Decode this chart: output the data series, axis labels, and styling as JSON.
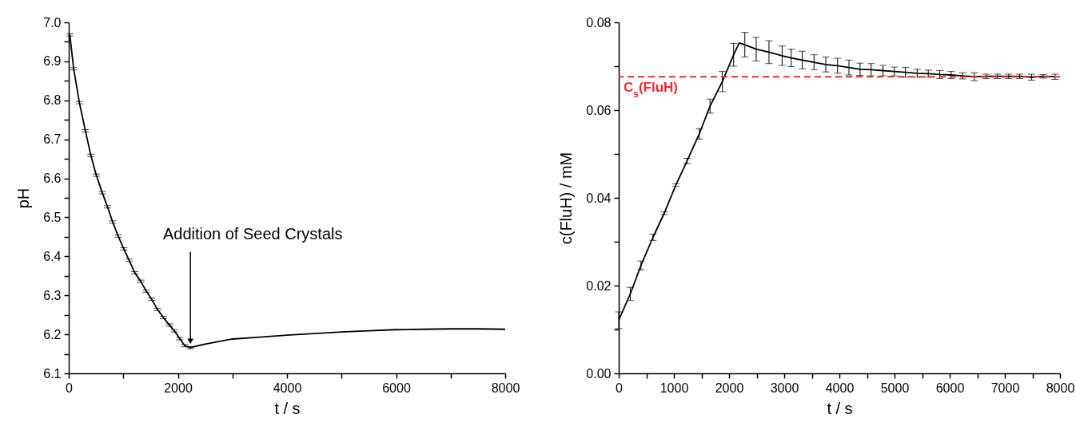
{
  "chart_data": [
    {
      "type": "line",
      "xlabel": "t / s",
      "ylabel": "pH",
      "x": [
        20,
        90,
        195,
        305,
        405,
        505,
        615,
        710,
        805,
        905,
        1010,
        1105,
        1210,
        1320,
        1420,
        1520,
        1625,
        1735,
        1845,
        1935,
        2035,
        2125,
        2230,
        2500,
        3000,
        3500,
        4000,
        4500,
        5000,
        5500,
        6000,
        6500,
        7000,
        7500,
        8000
      ],
      "series": [
        {
          "color": "#000000",
          "values": [
            6.968,
            6.881,
            6.794,
            6.722,
            6.659,
            6.608,
            6.563,
            6.527,
            6.488,
            6.452,
            6.419,
            6.39,
            6.358,
            6.336,
            6.311,
            6.29,
            6.264,
            6.243,
            6.224,
            6.209,
            6.189,
            6.171,
            6.166,
            6.175,
            6.188,
            6.193,
            6.198,
            6.202,
            6.206,
            6.209,
            6.212,
            6.213,
            6.214,
            6.214,
            6.213
          ],
          "errors": [
            0.003,
            0.003,
            0.003,
            0.003,
            0.003,
            0.003,
            0.003,
            0.003,
            0.003,
            0.003,
            0.003,
            0.003,
            0.003,
            0.003,
            0.003,
            0.003,
            0.003,
            0.003,
            0.003,
            0.003,
            0.003,
            0.003,
            0.003,
            null,
            null,
            null,
            null,
            null,
            null,
            null,
            null,
            null,
            null,
            null,
            null
          ]
        }
      ],
      "xlim": [
        0,
        8000
      ],
      "xticks": [
        0,
        {
          "value": 1000,
          "label": null
        },
        2000,
        {
          "value": 3000,
          "label": null
        },
        4000,
        {
          "value": 5000,
          "label": null
        },
        6000,
        {
          "value": 7000,
          "label": null
        },
        8000
      ],
      "ylim": [
        6.1,
        7.0
      ],
      "yticks": [
        6.1,
        {
          "value": 6.15,
          "label": null
        },
        6.2,
        {
          "value": 6.25,
          "label": null
        },
        6.3,
        {
          "value": 6.35,
          "label": null
        },
        6.4,
        {
          "value": 6.45,
          "label": null
        },
        6.5,
        {
          "value": 6.55,
          "label": null
        },
        6.6,
        {
          "value": 6.65,
          "label": null
        },
        6.7,
        {
          "value": 6.75,
          "label": null
        },
        6.8,
        {
          "value": 6.85,
          "label": null
        },
        6.9,
        {
          "value": 6.95,
          "label": null
        },
        {
          "value": 7.0,
          "label": "7.0"
        }
      ],
      "annotations": [
        {
          "text": "Addition of Seed Crystals",
          "x": 2230,
          "y": 6.166
        }
      ]
    },
    {
      "type": "line",
      "xlabel": "t / s",
      "ylabel": "c(FluH) / mM",
      "x": [
        0,
        209,
        403,
        621,
        825,
        1034,
        1238,
        1461,
        1655,
        1879,
        2083,
        2184,
        2286,
        2492,
        2724,
        2962,
        3126,
        3327,
        3540,
        3754,
        3967,
        4174,
        4375,
        4576,
        4790,
        4997,
        5198,
        5411,
        5612,
        5820,
        6027,
        6234,
        6447,
        6660,
        6862,
        7069,
        7270,
        7483,
        7696,
        7910
      ],
      "series": [
        {
          "color": "#000000",
          "values": [
            0.0121,
            0.0181,
            0.0246,
            0.031,
            0.0365,
            0.0429,
            0.0484,
            0.0546,
            0.0609,
            0.0665,
            0.0726,
            0.0753,
            0.0749,
            0.0739,
            0.0732,
            0.0724,
            0.0719,
            0.0714,
            0.0709,
            0.0704,
            0.0701,
            0.0697,
            0.0693,
            0.0692,
            0.069,
            0.0688,
            0.0686,
            0.0684,
            0.0683,
            0.0681,
            0.068,
            0.0678,
            0.0676,
            0.0677,
            0.0677,
            0.0677,
            0.0677,
            0.0675,
            0.0677,
            0.0676
          ],
          "errors": [
            0.0019,
            0.0015,
            0.001,
            0.0007,
            0.0003,
            0.0003,
            0.0006,
            0.0012,
            0.0016,
            0.0023,
            0.0026,
            null,
            0.0028,
            0.0027,
            0.0026,
            0.0022,
            0.002,
            0.002,
            0.0017,
            0.0017,
            0.0017,
            0.0017,
            0.0014,
            0.0014,
            0.0012,
            0.001,
            0.0011,
            0.0009,
            0.0008,
            0.0009,
            0.0008,
            0.0007,
            0.0009,
            0.0005,
            0.0005,
            0.0005,
            0.0005,
            0.0007,
            0.0004,
            0.0006
          ]
        }
      ],
      "xlim": [
        0,
        8000
      ],
      "xticks": [
        0,
        {
          "value": 500,
          "label": null
        },
        1000,
        {
          "value": 1500,
          "label": null
        },
        2000,
        {
          "value": 2500,
          "label": null
        },
        3000,
        {
          "value": 3500,
          "label": null
        },
        4000,
        {
          "value": 4500,
          "label": null
        },
        5000,
        {
          "value": 5500,
          "label": null
        },
        6000,
        {
          "value": 6500,
          "label": null
        },
        7000,
        {
          "value": 7500,
          "label": null
        },
        8000
      ],
      "ylim": [
        0,
        0.08
      ],
      "yticks": [
        {
          "value": 0,
          "label": "0.00"
        },
        {
          "value": 0.01,
          "label": null
        },
        0.02,
        {
          "value": 0.03,
          "label": null
        },
        0.04,
        {
          "value": 0.05,
          "label": null
        },
        0.06,
        {
          "value": 0.07,
          "label": null
        },
        0.08
      ],
      "ref_lines": [
        {
          "axis": "y",
          "value": 0.0676,
          "label": "C$_{s}$(FluH)",
          "color": "#ee2a2f",
          "line_style": "dashed"
        }
      ]
    }
  ]
}
